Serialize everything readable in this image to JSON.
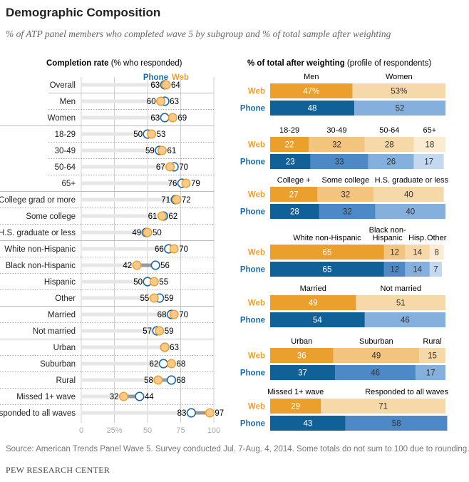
{
  "title": "Demographic Composition",
  "subtitle": "% of ATP panel members who completed wave 5 by subgroup and % of total sample after weighting",
  "source": "Source: American Trends Panel Wave 5. Survey conducted Jul. 7-Aug. 4, 2014. Some totals do not sum to 100 due to rounding.",
  "org": "PEW RESEARCH CENTER",
  "colors": {
    "web": "#E9A033",
    "phone": "#1F6AA5"
  },
  "chart_data": [
    {
      "type": "dot",
      "title_bold": "Completion rate",
      "title_rest": " (% who responded)",
      "legend": {
        "phone": "Phone",
        "web": "Web"
      },
      "xlim": [
        0,
        100
      ],
      "ticks": [
        "0",
        "25%",
        "50",
        "75",
        "100"
      ],
      "tick_values": [
        0,
        25,
        50,
        75,
        100
      ],
      "grid": true,
      "rows": [
        {
          "label": "Overall",
          "phone": 63,
          "web": 64,
          "group": 0
        },
        {
          "label": "Men",
          "phone": 63,
          "web": 60,
          "group": 1
        },
        {
          "label": "Women",
          "phone": 63,
          "web": 69,
          "group": 1
        },
        {
          "label": "18-29",
          "phone": 50,
          "web": 53,
          "group": 2
        },
        {
          "label": "30-49",
          "phone": 59,
          "web": 61,
          "group": 2
        },
        {
          "label": "50-64",
          "phone": 70,
          "web": 67,
          "group": 2
        },
        {
          "label": "65+",
          "phone": 76,
          "web": 79,
          "group": 2
        },
        {
          "label": "College grad or more",
          "phone": 71,
          "web": 72,
          "group": 3
        },
        {
          "label": "Some college",
          "phone": 62,
          "web": 61,
          "group": 3
        },
        {
          "label": "H.S. graduate or less",
          "phone": 49,
          "web": 50,
          "group": 3
        },
        {
          "label": "White non-Hispanic",
          "phone": 66,
          "web": 70,
          "group": 4
        },
        {
          "label": "Black non-Hispanic",
          "phone": 56,
          "web": 42,
          "group": 4
        },
        {
          "label": "Hispanic",
          "phone": 50,
          "web": 55,
          "group": 4
        },
        {
          "label": "Other",
          "phone": 59,
          "web": 55,
          "group": 4
        },
        {
          "label": "Married",
          "phone": 68,
          "web": 70,
          "group": 5
        },
        {
          "label": "Not married",
          "phone": 57,
          "web": 59,
          "group": 5
        },
        {
          "label": "Urban",
          "phone": 63,
          "web": 63,
          "group": 6
        },
        {
          "label": "Suburban",
          "phone": 62,
          "web": 68,
          "group": 6
        },
        {
          "label": "Rural",
          "phone": 68,
          "web": 58,
          "group": 6
        },
        {
          "label": "Missed 1+ wave",
          "phone": 44,
          "web": 32,
          "group": 6
        },
        {
          "label": "Responded to all waves",
          "phone": 83,
          "web": 97,
          "group": 6
        }
      ]
    },
    {
      "type": "stacked-bar",
      "title_bold": "% of total after weighting",
      "title_rest": " (profile of respondents)",
      "row_labels": {
        "web": "Web",
        "phone": "Phone"
      },
      "groups": [
        {
          "categories": [
            "Men",
            "Women"
          ],
          "web": [
            47,
            53
          ],
          "web_labels": [
            "47%",
            "53%"
          ],
          "phone": [
            48,
            52
          ],
          "web_colors": [
            "#EBA02E",
            "#F7D8A8"
          ],
          "phone_colors": [
            "#116199",
            "#85B0DE"
          ]
        },
        {
          "categories": [
            "18-29",
            "30-49",
            "50-64",
            "65+"
          ],
          "web": [
            22,
            32,
            28,
            18
          ],
          "phone": [
            23,
            33,
            26,
            17
          ],
          "web_colors": [
            "#EBA02E",
            "#F3C47E",
            "#F7D8A8",
            "#FBEBD3"
          ],
          "phone_colors": [
            "#116199",
            "#4D88C7",
            "#85B0DE",
            "#C4D9F0"
          ]
        },
        {
          "categories": [
            "College +",
            "Some college",
            "H.S. graduate or less"
          ],
          "web": [
            27,
            32,
            40
          ],
          "phone": [
            28,
            32,
            40
          ],
          "web_colors": [
            "#EBA02E",
            "#F3C47E",
            "#F7D8A8"
          ],
          "phone_colors": [
            "#116199",
            "#4D88C7",
            "#85B0DE"
          ]
        },
        {
          "categories": [
            "White non-Hispanic",
            "Black non-Hispanic",
            "Hisp.",
            "Other"
          ],
          "web": [
            65,
            12,
            14,
            8
          ],
          "phone": [
            65,
            12,
            14,
            7
          ],
          "web_colors": [
            "#EBA02E",
            "#F3C47E",
            "#F7D8A8",
            "#FBEBD3"
          ],
          "phone_colors": [
            "#116199",
            "#4D88C7",
            "#85B0DE",
            "#C4D9F0"
          ]
        },
        {
          "categories": [
            "Married",
            "Not married"
          ],
          "web": [
            49,
            51
          ],
          "phone": [
            54,
            46
          ],
          "web_colors": [
            "#EBA02E",
            "#F7D8A8"
          ],
          "phone_colors": [
            "#116199",
            "#85B0DE"
          ]
        },
        {
          "categories": [
            "Urban",
            "Suburban",
            "Rural"
          ],
          "web": [
            36,
            49,
            15
          ],
          "phone": [
            37,
            46,
            17
          ],
          "web_colors": [
            "#EBA02E",
            "#F3C47E",
            "#F7D8A8"
          ],
          "phone_colors": [
            "#116199",
            "#4D88C7",
            "#85B0DE"
          ]
        },
        {
          "categories": [
            "Missed 1+ wave",
            "Responded to all waves"
          ],
          "web": [
            29,
            71
          ],
          "phone": [
            43,
            58
          ],
          "web_colors": [
            "#EBA02E",
            "#F7D8A8"
          ],
          "phone_colors": [
            "#116199",
            "#4D88C7"
          ]
        }
      ]
    }
  ]
}
